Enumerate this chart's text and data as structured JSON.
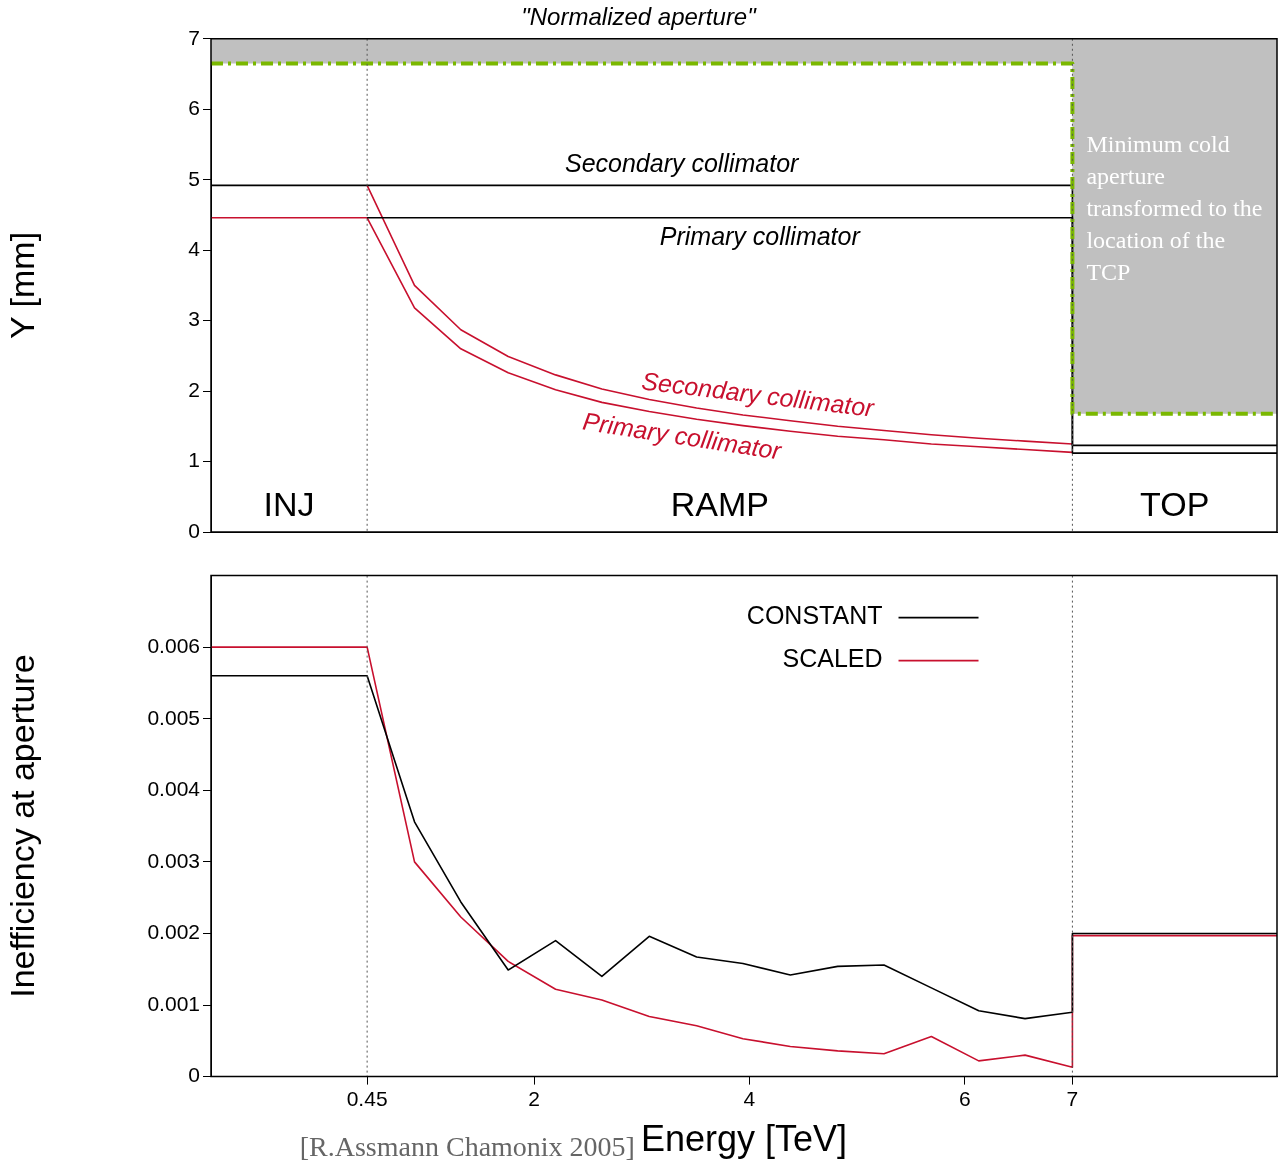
{
  "chart_data": [
    {
      "type": "line",
      "title": "\"Normalized aperture\"",
      "ylabel": "Y [mm]",
      "xlim": [
        -1,
        8.9
      ],
      "ylim": [
        0,
        7
      ],
      "yticks": [
        0,
        1,
        2,
        3,
        4,
        5,
        6,
        7
      ],
      "tick_labels": "y",
      "grid": false,
      "marker": "none",
      "series": [
        {
          "color": "#7ab800",
          "line_style": "dashed",
          "x": [
            -1,
            7,
            7,
            8.9
          ],
          "values": [
            6.65,
            6.65,
            1.68,
            1.68
          ],
          "lower": [
            6.65,
            6.65,
            1.68,
            1.68
          ],
          "upper": [
            7,
            7,
            7,
            7
          ]
        },
        {
          "name": "Secondary collimator",
          "color": "#000000",
          "x": [
            -1,
            7,
            7,
            8.9
          ],
          "values": [
            4.92,
            4.92,
            1.23,
            1.23
          ]
        },
        {
          "name": "Primary collimator",
          "color": "#000000",
          "x": [
            0.45,
            7,
            7,
            8.9
          ],
          "values": [
            4.46,
            4.46,
            1.12,
            1.12
          ]
        },
        {
          "name": "Secondary collimator",
          "color": "#c8102e",
          "x": [
            0.45,
            0.89,
            1.32,
            1.76,
            2.2,
            2.63,
            3.07,
            3.51,
            3.94,
            4.38,
            4.82,
            5.25,
            5.69,
            6.13,
            6.56,
            7
          ],
          "values": [
            4.92,
            3.5,
            2.87,
            2.49,
            2.23,
            2.03,
            1.88,
            1.76,
            1.66,
            1.58,
            1.5,
            1.44,
            1.38,
            1.33,
            1.29,
            1.25
          ]
        },
        {
          "name": "Primary collimator",
          "color": "#c8102e",
          "x": [
            -1,
            0.45,
            0.89,
            1.32,
            1.76,
            2.2,
            2.63,
            3.07,
            3.51,
            3.94,
            4.38,
            4.82,
            5.25,
            5.69,
            6.13,
            6.56,
            7
          ],
          "values": [
            4.46,
            4.46,
            3.18,
            2.6,
            2.26,
            2.02,
            1.84,
            1.71,
            1.6,
            1.51,
            1.43,
            1.36,
            1.31,
            1.25,
            1.21,
            1.17,
            1.13
          ]
        }
      ],
      "ref_lines": [
        {
          "axis": "x",
          "value": 0.45,
          "color": "#555555",
          "line_style": "dotted"
        },
        {
          "axis": "x",
          "value": 7,
          "color": "#555555",
          "line_style": "dotted"
        }
      ],
      "annotations": [
        "Minimum cold aperture transformed to the location of the TCP",
        "INJ",
        "RAMP",
        "TOP"
      ]
    },
    {
      "type": "line",
      "xlabel": "Energy [TeV]",
      "ylabel": "Inefficiency at aperture",
      "xlim": [
        -1,
        8.9
      ],
      "xticks": [
        0.45,
        2,
        4,
        6,
        7
      ],
      "ylim": [
        0,
        0.007
      ],
      "yticks": [
        0,
        0.001,
        0.002,
        0.003,
        0.004,
        0.005,
        0.006
      ],
      "grid": false,
      "marker": "none",
      "legend": "top right",
      "series": [
        {
          "name": "CONSTANT",
          "color": "#000000",
          "x": [
            -1,
            0.45,
            0.89,
            1.32,
            1.76,
            2.2,
            2.63,
            3.07,
            3.51,
            3.94,
            4.38,
            4.82,
            5.25,
            5.69,
            6.13,
            6.56,
            7,
            7,
            8.9
          ],
          "values": [
            0.0056,
            0.0056,
            0.00356,
            0.00244,
            0.00149,
            0.0019,
            0.0014,
            0.00196,
            0.00167,
            0.00158,
            0.00142,
            0.00154,
            0.00156,
            0.00124,
            0.00092,
            0.00081,
            0.0009,
            0.002,
            0.002
          ]
        },
        {
          "name": "SCALED",
          "color": "#c8102e",
          "x": [
            -1,
            0.45,
            0.89,
            1.32,
            1.76,
            2.2,
            2.63,
            3.07,
            3.51,
            3.94,
            4.38,
            4.82,
            5.25,
            5.69,
            6.13,
            6.56,
            7,
            7,
            8.9
          ],
          "values": [
            0.006,
            0.006,
            0.003,
            0.00223,
            0.00161,
            0.00122,
            0.00107,
            0.00084,
            0.00071,
            0.00053,
            0.00042,
            0.00036,
            0.00032,
            0.00056,
            0.00022,
            0.0003,
            0.00013,
            0.00197,
            0.00197
          ]
        }
      ],
      "ref_lines": [
        {
          "axis": "x",
          "value": 0.45,
          "color": "#555555",
          "line_style": "dotted"
        },
        {
          "axis": "x",
          "value": 7,
          "color": "#555555",
          "line_style": "dotted"
        }
      ],
      "annotations": [
        "[R.Assmann Chamonix 2005]"
      ]
    }
  ]
}
